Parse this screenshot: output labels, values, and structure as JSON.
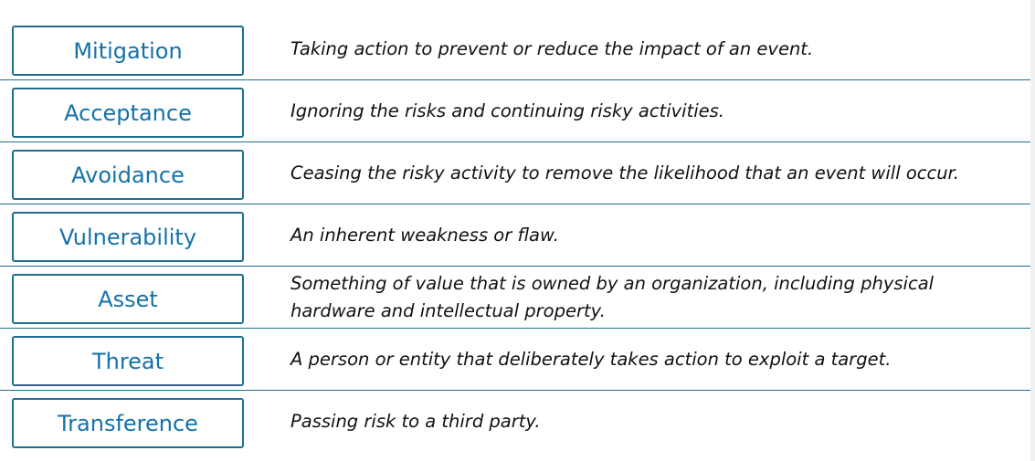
{
  "colors": {
    "accent": "#1f6e8f",
    "term_text": "#1672a6",
    "definition_text": "#111111"
  },
  "matching": {
    "rows": [
      {
        "term": "Mitigation",
        "definition": "Taking action to prevent or reduce the impact of an event."
      },
      {
        "term": "Acceptance",
        "definition": "Ignoring the risks and continuing risky activities."
      },
      {
        "term": "Avoidance",
        "definition": "Ceasing the risky activity to remove the likelihood that an event will occur."
      },
      {
        "term": "Vulnerability",
        "definition": "An inherent weakness or flaw."
      },
      {
        "term": "Asset",
        "definition": "Something of value that is owned by an organization, including physical hardware and intellectual property."
      },
      {
        "term": "Threat",
        "definition": "A person or entity that deliberately takes action to exploit a target."
      },
      {
        "term": "Transference",
        "definition": "Passing risk to a third party."
      }
    ]
  }
}
